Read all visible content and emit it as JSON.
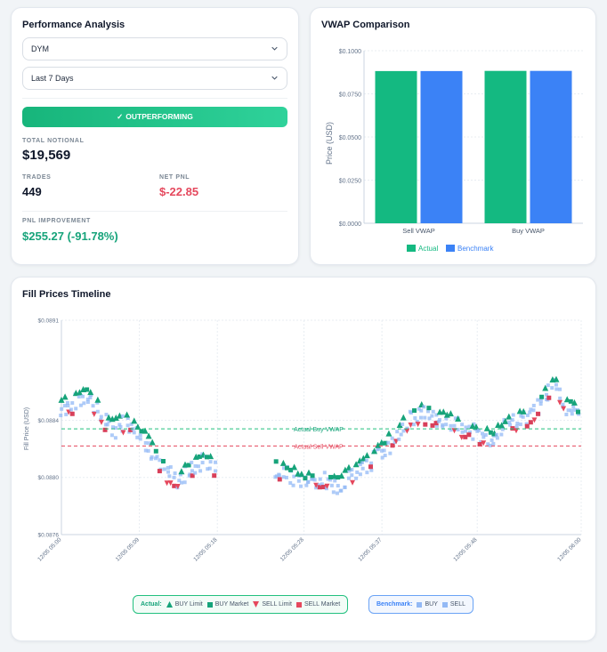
{
  "performance": {
    "title": "Performance Analysis",
    "asset_select": "DYM",
    "range_select": "Last 7 Days",
    "status": "OUTPERFORMING",
    "total_notional_label": "TOTAL NOTIONAL",
    "total_notional": "$19,569",
    "trades_label": "TRADES",
    "trades": "449",
    "net_pnl_label": "NET PNL",
    "net_pnl": "$-22.85",
    "pnl_improvement_label": "PNL IMPROVEMENT",
    "pnl_improvement": "$255.27 (-91.78%)"
  },
  "vwap": {
    "title": "VWAP Comparison",
    "ylabel": "Price (USD)",
    "legend_actual": "Actual",
    "legend_benchmark": "Benchmark",
    "colors": {
      "actual": "#14b981",
      "benchmark": "#3b82f6"
    }
  },
  "timeline": {
    "title": "Fill Prices Timeline",
    "ylabel": "Fill Price (USD)",
    "buy_vwap_label": "Actual Buy VWAP",
    "sell_vwap_label": "Actual Sell VWAP",
    "legend_actual_title": "Actual:",
    "legend_buy_limit": "BUY Limit",
    "legend_buy_market": "BUY Market",
    "legend_sell_limit": "SELL Limit",
    "legend_sell_market": "SELL Market",
    "legend_benchmark_title": "Benchmark:",
    "legend_bench_buy": "BUY",
    "legend_bench_sell": "SELL"
  },
  "chart_data": [
    {
      "type": "bar",
      "title": "VWAP Comparison",
      "ylabel": "Price (USD)",
      "categories": [
        "Sell VWAP",
        "Buy VWAP"
      ],
      "series": [
        {
          "name": "Actual",
          "values": [
            0.0882,
            0.0883
          ]
        },
        {
          "name": "Benchmark",
          "values": [
            0.0882,
            0.0883
          ]
        }
      ],
      "ylim": [
        0,
        0.1
      ],
      "yticks": [
        "$0.0000",
        "$0.0250",
        "$0.0500",
        "$0.0750",
        "$0.1000"
      ],
      "legend": "bottom"
    },
    {
      "type": "scatter",
      "title": "Fill Prices Timeline",
      "ylabel": "Fill Price (USD)",
      "ylim": [
        0.0876,
        0.0891
      ],
      "yticks": [
        "$0.0876",
        "$0.0880",
        "$0.0884",
        "$0.0891"
      ],
      "xticks": [
        "12/05 05:00",
        "12/05 05:09",
        "12/05 05:18",
        "12/05 05:28",
        "12/05 05:37",
        "12/05 05:48",
        "12/05 06:00"
      ],
      "x_minutes": [
        0,
        9,
        18,
        28,
        37,
        48,
        60
      ],
      "buy_vwap": 0.08834,
      "sell_vwap": 0.08822,
      "anchors": [
        [
          0,
          0.08848
        ],
        [
          1.5,
          0.08852
        ],
        [
          3,
          0.08858
        ],
        [
          4.5,
          0.08844
        ],
        [
          6,
          0.08832
        ],
        [
          7.5,
          0.0884
        ],
        [
          9,
          0.0883
        ],
        [
          10.5,
          0.08818
        ],
        [
          12,
          0.08804
        ],
        [
          13.5,
          0.08798
        ],
        [
          15,
          0.08806
        ],
        [
          16.5,
          0.08812
        ],
        [
          18,
          0.08804
        ],
        [
          24.5,
          0.08806
        ],
        [
          26,
          0.08802
        ],
        [
          28,
          0.08796
        ],
        [
          30,
          0.088
        ],
        [
          32,
          0.08794
        ],
        [
          34,
          0.08804
        ],
        [
          36,
          0.08812
        ],
        [
          38,
          0.08824
        ],
        [
          40,
          0.0884
        ],
        [
          42,
          0.08844
        ],
        [
          44,
          0.0884
        ],
        [
          46,
          0.08836
        ],
        [
          48,
          0.0883
        ],
        [
          50,
          0.08826
        ],
        [
          52,
          0.0884
        ],
        [
          54,
          0.08842
        ],
        [
          56,
          0.08856
        ],
        [
          57,
          0.08866
        ],
        [
          58,
          0.08852
        ],
        [
          60,
          0.0884
        ]
      ],
      "legend": "bottom"
    }
  ]
}
